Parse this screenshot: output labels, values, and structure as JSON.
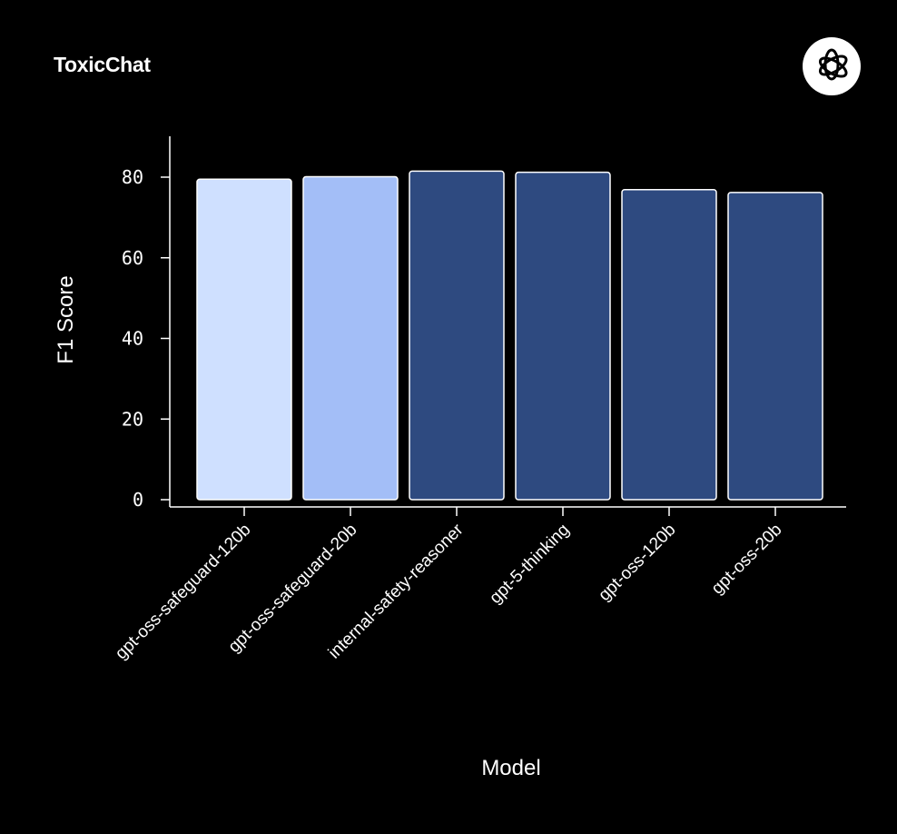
{
  "chart_data": {
    "type": "bar",
    "title": "ToxicChat",
    "xlabel": "Model",
    "ylabel": "F1 Score",
    "categories": [
      "gpt-oss-safeguard-120b",
      "gpt-oss-safeguard-20b",
      "internal-safety-reasoner",
      "gpt-5-thinking",
      "gpt-oss-120b",
      "gpt-oss-20b"
    ],
    "values": [
      79.5,
      80.1,
      81.5,
      81.2,
      76.9,
      76.2
    ],
    "colors": [
      "#cfe0ff",
      "#a3bef7",
      "#2e4a80",
      "#2e4a80",
      "#2e4a80",
      "#2e4a80"
    ],
    "yticks": [
      0,
      20,
      40,
      60,
      80
    ],
    "ytick_labels": [
      "0",
      "20",
      "40",
      "60",
      "80"
    ],
    "ylim": [
      0,
      90
    ],
    "grid": false
  },
  "logo_icon": "openai-logo-icon"
}
